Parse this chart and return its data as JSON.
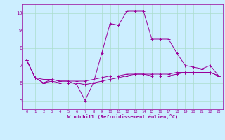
{
  "xlabel": "Windchill (Refroidissement éolien,°C)",
  "ylabel": "",
  "bg_color": "#cceeff",
  "line_color": "#990099",
  "grid_color": "#aaddcc",
  "xlim": [
    -0.5,
    23.5
  ],
  "ylim": [
    4.5,
    10.5
  ],
  "yticks": [
    5,
    6,
    7,
    8,
    9,
    10
  ],
  "xticks": [
    0,
    1,
    2,
    3,
    4,
    5,
    6,
    7,
    8,
    9,
    10,
    11,
    12,
    13,
    14,
    15,
    16,
    17,
    18,
    19,
    20,
    21,
    22,
    23
  ],
  "series": [
    [
      7.3,
      6.3,
      6.0,
      6.2,
      6.1,
      6.1,
      5.9,
      5.0,
      6.0,
      7.7,
      9.4,
      9.3,
      10.1,
      10.1,
      10.1,
      8.5,
      8.5,
      8.5,
      7.7,
      7.0,
      6.9,
      6.8,
      7.0,
      6.4
    ],
    [
      7.3,
      6.3,
      6.2,
      6.2,
      6.1,
      6.1,
      6.1,
      6.1,
      6.2,
      6.3,
      6.4,
      6.4,
      6.5,
      6.5,
      6.5,
      6.5,
      6.5,
      6.5,
      6.6,
      6.6,
      6.6,
      6.6,
      6.6,
      6.4
    ],
    [
      7.3,
      6.3,
      6.0,
      6.1,
      6.0,
      6.0,
      6.0,
      5.9,
      6.0,
      6.1,
      6.2,
      6.3,
      6.4,
      6.5,
      6.5,
      6.4,
      6.4,
      6.4,
      6.5,
      6.6,
      6.6,
      6.6,
      6.6,
      6.4
    ]
  ]
}
